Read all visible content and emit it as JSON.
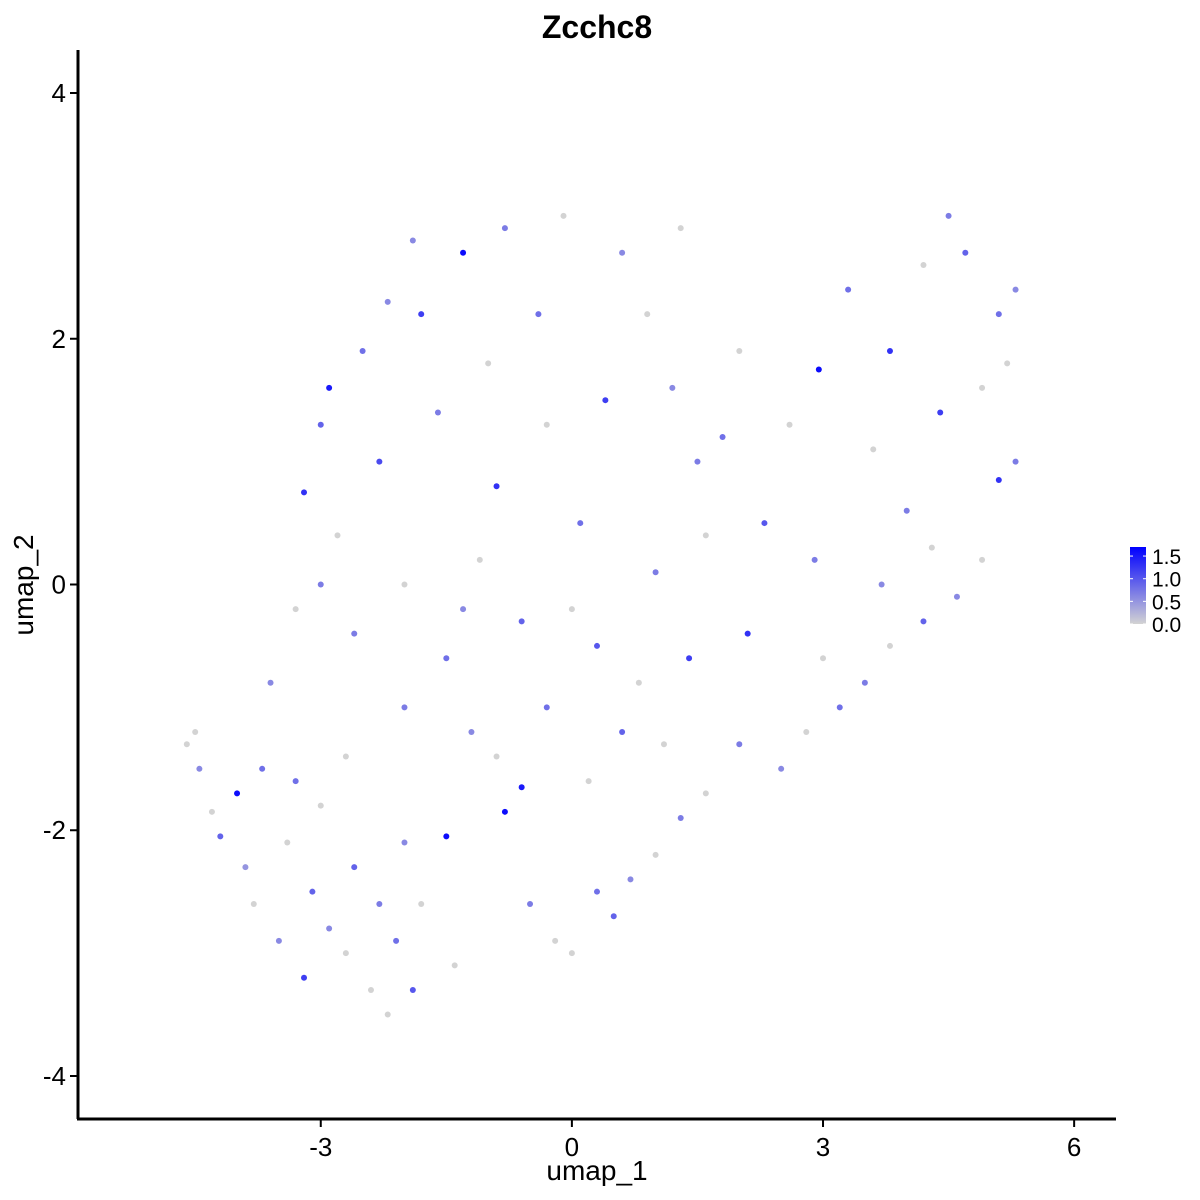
{
  "chart_data": {
    "type": "scatter",
    "title": "Zcchc8",
    "xlabel": "umap_1",
    "ylabel": "umap_2",
    "xlim": [
      -5.9,
      6.5
    ],
    "ylim": [
      -4.35,
      4.35
    ],
    "x_ticks": [
      -3,
      0,
      3,
      6
    ],
    "x_tick_labels": [
      "-3",
      "0",
      "3",
      "6"
    ],
    "y_ticks": [
      -4,
      -2,
      0,
      2,
      4
    ],
    "y_tick_labels": [
      "-4",
      "-2",
      "0",
      "2",
      "4"
    ],
    "grid": false,
    "color_scale": {
      "low_color": "#d3d3d3",
      "high_color": "#0000ff",
      "min": 0.0,
      "max": 1.7,
      "legend_ticks": [
        0.0,
        0.5,
        1.0,
        1.5
      ],
      "legend_tick_labels": [
        "0.0",
        "0.5",
        "1.0",
        "1.5"
      ],
      "legend_placement": "right"
    },
    "points_note": "approximate sample of cells read from the figure; value = expression level",
    "points": [
      {
        "x": -4.6,
        "y": -1.3,
        "value": 0.0
      },
      {
        "x": -4.5,
        "y": -1.2,
        "value": 0.0
      },
      {
        "x": -4.45,
        "y": -1.5,
        "value": 0.6
      },
      {
        "x": -4.3,
        "y": -1.85,
        "value": 0.0
      },
      {
        "x": -4.2,
        "y": -2.05,
        "value": 0.9
      },
      {
        "x": -4.0,
        "y": -1.7,
        "value": 1.6
      },
      {
        "x": -3.9,
        "y": -2.3,
        "value": 0.5
      },
      {
        "x": -3.8,
        "y": -2.6,
        "value": 0.0
      },
      {
        "x": -3.7,
        "y": -1.5,
        "value": 0.8
      },
      {
        "x": -3.5,
        "y": -2.9,
        "value": 0.6
      },
      {
        "x": -3.4,
        "y": -2.1,
        "value": 0.0
      },
      {
        "x": -3.2,
        "y": -3.2,
        "value": 1.2
      },
      {
        "x": -3.1,
        "y": -2.5,
        "value": 0.9
      },
      {
        "x": -3.0,
        "y": -1.8,
        "value": 0.0
      },
      {
        "x": -2.9,
        "y": -2.8,
        "value": 0.6
      },
      {
        "x": -2.7,
        "y": -3.0,
        "value": 0.0
      },
      {
        "x": -2.6,
        "y": -2.3,
        "value": 0.9
      },
      {
        "x": -2.4,
        "y": -3.3,
        "value": 0.0
      },
      {
        "x": -2.3,
        "y": -2.6,
        "value": 0.7
      },
      {
        "x": -2.2,
        "y": -3.5,
        "value": 0.0
      },
      {
        "x": -2.1,
        "y": -2.9,
        "value": 0.8
      },
      {
        "x": -2.0,
        "y": -2.1,
        "value": 0.6
      },
      {
        "x": -1.9,
        "y": -3.3,
        "value": 1.0
      },
      {
        "x": -1.8,
        "y": -2.6,
        "value": 0.0
      },
      {
        "x": -1.5,
        "y": -2.05,
        "value": 1.6
      },
      {
        "x": -1.4,
        "y": -3.1,
        "value": 0.0
      },
      {
        "x": -0.8,
        "y": -1.85,
        "value": 1.6
      },
      {
        "x": -0.6,
        "y": -1.65,
        "value": 1.5
      },
      {
        "x": -0.5,
        "y": -2.6,
        "value": 0.7
      },
      {
        "x": -0.2,
        "y": -2.9,
        "value": 0.0
      },
      {
        "x": 0.0,
        "y": -3.0,
        "value": 0.0
      },
      {
        "x": 0.3,
        "y": -2.5,
        "value": 0.8
      },
      {
        "x": 0.5,
        "y": -2.7,
        "value": 0.9
      },
      {
        "x": 0.7,
        "y": -2.4,
        "value": 0.6
      },
      {
        "x": 1.0,
        "y": -2.2,
        "value": 0.0
      },
      {
        "x": 1.3,
        "y": -1.9,
        "value": 0.7
      },
      {
        "x": 1.6,
        "y": -1.7,
        "value": 0.0
      },
      {
        "x": 2.0,
        "y": -1.3,
        "value": 0.7
      },
      {
        "x": 2.5,
        "y": -1.5,
        "value": 0.6
      },
      {
        "x": 2.8,
        "y": -1.2,
        "value": 0.0
      },
      {
        "x": 3.2,
        "y": -1.0,
        "value": 0.8
      },
      {
        "x": 3.5,
        "y": -0.8,
        "value": 0.7
      },
      {
        "x": 3.8,
        "y": -0.5,
        "value": 0.0
      },
      {
        "x": 4.2,
        "y": -0.3,
        "value": 0.9
      },
      {
        "x": 4.6,
        "y": -0.1,
        "value": 0.6
      },
      {
        "x": 4.9,
        "y": 0.2,
        "value": 0.0
      },
      {
        "x": 5.1,
        "y": 0.85,
        "value": 1.3
      },
      {
        "x": 5.3,
        "y": 1.0,
        "value": 0.7
      },
      {
        "x": -3.6,
        "y": -0.8,
        "value": 0.6
      },
      {
        "x": -3.3,
        "y": -0.2,
        "value": 0.0
      },
      {
        "x": -3.2,
        "y": 0.75,
        "value": 1.3
      },
      {
        "x": -3.0,
        "y": 1.3,
        "value": 0.9
      },
      {
        "x": -2.9,
        "y": 1.6,
        "value": 1.5
      },
      {
        "x": -2.8,
        "y": 0.4,
        "value": 0.0
      },
      {
        "x": -2.6,
        "y": -0.4,
        "value": 0.7
      },
      {
        "x": -2.5,
        "y": 1.9,
        "value": 0.8
      },
      {
        "x": -2.3,
        "y": 1.0,
        "value": 1.1
      },
      {
        "x": -2.2,
        "y": 2.3,
        "value": 0.6
      },
      {
        "x": -2.0,
        "y": 0.0,
        "value": 0.0
      },
      {
        "x": -1.8,
        "y": 2.2,
        "value": 1.2
      },
      {
        "x": -1.6,
        "y": 1.4,
        "value": 0.7
      },
      {
        "x": -1.5,
        "y": -0.6,
        "value": 0.8
      },
      {
        "x": -1.3,
        "y": 2.7,
        "value": 1.6
      },
      {
        "x": -1.1,
        "y": 0.2,
        "value": 0.0
      },
      {
        "x": -0.9,
        "y": 0.8,
        "value": 1.3
      },
      {
        "x": -0.8,
        "y": 2.9,
        "value": 0.7
      },
      {
        "x": -0.6,
        "y": -0.3,
        "value": 0.9
      },
      {
        "x": -0.3,
        "y": 1.3,
        "value": 0.0
      },
      {
        "x": -0.1,
        "y": 3.0,
        "value": 0.0
      },
      {
        "x": 0.1,
        "y": 0.5,
        "value": 0.8
      },
      {
        "x": 0.3,
        "y": -0.5,
        "value": 1.0
      },
      {
        "x": 0.4,
        "y": 1.5,
        "value": 1.2
      },
      {
        "x": 0.6,
        "y": 2.7,
        "value": 0.6
      },
      {
        "x": 0.8,
        "y": -0.8,
        "value": 0.0
      },
      {
        "x": 1.0,
        "y": 0.1,
        "value": 0.7
      },
      {
        "x": 1.2,
        "y": 1.6,
        "value": 0.6
      },
      {
        "x": 1.4,
        "y": -0.6,
        "value": 1.2
      },
      {
        "x": 1.6,
        "y": 0.4,
        "value": 0.0
      },
      {
        "x": 1.8,
        "y": 1.2,
        "value": 0.8
      },
      {
        "x": 2.0,
        "y": 1.9,
        "value": 0.0
      },
      {
        "x": 2.1,
        "y": -0.4,
        "value": 1.3
      },
      {
        "x": 2.3,
        "y": 0.5,
        "value": 1.0
      },
      {
        "x": 2.6,
        "y": 1.3,
        "value": 0.0
      },
      {
        "x": 2.9,
        "y": 0.2,
        "value": 0.7
      },
      {
        "x": 2.95,
        "y": 1.75,
        "value": 1.6
      },
      {
        "x": 3.3,
        "y": 2.4,
        "value": 0.8
      },
      {
        "x": 3.6,
        "y": 1.1,
        "value": 0.0
      },
      {
        "x": 3.8,
        "y": 1.9,
        "value": 1.3
      },
      {
        "x": 4.0,
        "y": 0.6,
        "value": 0.7
      },
      {
        "x": 4.2,
        "y": 2.6,
        "value": 0.0
      },
      {
        "x": 4.4,
        "y": 1.4,
        "value": 1.2
      },
      {
        "x": 4.5,
        "y": 3.0,
        "value": 0.7
      },
      {
        "x": 4.7,
        "y": 2.7,
        "value": 0.9
      },
      {
        "x": 4.9,
        "y": 1.6,
        "value": 0.0
      },
      {
        "x": 5.1,
        "y": 2.2,
        "value": 0.8
      },
      {
        "x": 5.3,
        "y": 2.4,
        "value": 0.6
      },
      {
        "x": 5.2,
        "y": 1.8,
        "value": 0.0
      },
      {
        "x": 4.3,
        "y": 0.3,
        "value": 0.0
      },
      {
        "x": -1.2,
        "y": -1.2,
        "value": 0.6
      },
      {
        "x": -0.9,
        "y": -1.4,
        "value": 0.0
      },
      {
        "x": -0.3,
        "y": -1.0,
        "value": 0.8
      },
      {
        "x": 0.2,
        "y": -1.6,
        "value": 0.0
      },
      {
        "x": 0.6,
        "y": -1.2,
        "value": 0.9
      },
      {
        "x": 1.1,
        "y": -1.3,
        "value": 0.0
      },
      {
        "x": -2.0,
        "y": -1.0,
        "value": 0.7
      },
      {
        "x": -2.7,
        "y": -1.4,
        "value": 0.0
      },
      {
        "x": -3.3,
        "y": -1.6,
        "value": 0.8
      },
      {
        "x": -1.0,
        "y": 1.8,
        "value": 0.0
      },
      {
        "x": -0.4,
        "y": 2.2,
        "value": 0.8
      },
      {
        "x": 0.9,
        "y": 2.2,
        "value": 0.0
      },
      {
        "x": 1.3,
        "y": 2.9,
        "value": 0.0
      },
      {
        "x": -1.9,
        "y": 2.8,
        "value": 0.6
      },
      {
        "x": -3.0,
        "y": 0.0,
        "value": 0.7
      },
      {
        "x": -1.3,
        "y": -0.2,
        "value": 0.6
      },
      {
        "x": 0.0,
        "y": -0.2,
        "value": 0.0
      },
      {
        "x": 1.5,
        "y": 1.0,
        "value": 0.7
      },
      {
        "x": 3.0,
        "y": -0.6,
        "value": 0.0
      },
      {
        "x": 3.7,
        "y": 0.0,
        "value": 0.6
      }
    ]
  }
}
